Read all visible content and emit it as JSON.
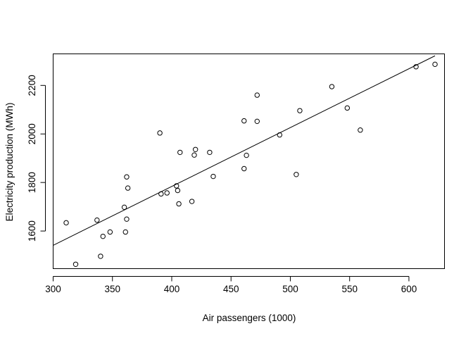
{
  "chart_data": {
    "type": "scatter",
    "title": "",
    "xlabel": "Air passengers (1000)",
    "ylabel": "Electricity production (MWh)",
    "xlim": [
      300,
      630
    ],
    "ylim": [
      1445,
      2330
    ],
    "xticks": [
      300,
      350,
      400,
      450,
      500,
      550,
      600
    ],
    "xtick_labels": [
      "300",
      "350",
      "400",
      "450",
      "500",
      "550",
      "600"
    ],
    "yticks": [
      1600,
      1800,
      2000,
      2200
    ],
    "ytick_labels": [
      "1600",
      "1800",
      "2000",
      "2200"
    ],
    "grid": false,
    "legend": "none",
    "points": [
      {
        "x": 311,
        "y": 1634
      },
      {
        "x": 319,
        "y": 1463
      },
      {
        "x": 337,
        "y": 1645
      },
      {
        "x": 340,
        "y": 1496
      },
      {
        "x": 342,
        "y": 1578
      },
      {
        "x": 348,
        "y": 1596
      },
      {
        "x": 360,
        "y": 1698
      },
      {
        "x": 361,
        "y": 1596
      },
      {
        "x": 362,
        "y": 1649
      },
      {
        "x": 362,
        "y": 1823
      },
      {
        "x": 363,
        "y": 1777
      },
      {
        "x": 390,
        "y": 2004
      },
      {
        "x": 391,
        "y": 1753
      },
      {
        "x": 396,
        "y": 1757
      },
      {
        "x": 404,
        "y": 1786
      },
      {
        "x": 405,
        "y": 1767
      },
      {
        "x": 406,
        "y": 1712
      },
      {
        "x": 407,
        "y": 1924
      },
      {
        "x": 417,
        "y": 1722
      },
      {
        "x": 419,
        "y": 1913
      },
      {
        "x": 420,
        "y": 1936
      },
      {
        "x": 432,
        "y": 1924
      },
      {
        "x": 435,
        "y": 1825
      },
      {
        "x": 461,
        "y": 1857
      },
      {
        "x": 461,
        "y": 2054
      },
      {
        "x": 463,
        "y": 1912
      },
      {
        "x": 472,
        "y": 2052
      },
      {
        "x": 472,
        "y": 2160
      },
      {
        "x": 491,
        "y": 1996
      },
      {
        "x": 505,
        "y": 1833
      },
      {
        "x": 508,
        "y": 2096
      },
      {
        "x": 535,
        "y": 2195
      },
      {
        "x": 548,
        "y": 2107
      },
      {
        "x": 559,
        "y": 2016
      },
      {
        "x": 606,
        "y": 2277
      },
      {
        "x": 622,
        "y": 2287
      }
    ],
    "fit_line": {
      "x": [
        300,
        622
      ],
      "y": [
        1541,
        2322
      ]
    }
  },
  "colors": {
    "ink": "#000000",
    "background": "#ffffff"
  }
}
